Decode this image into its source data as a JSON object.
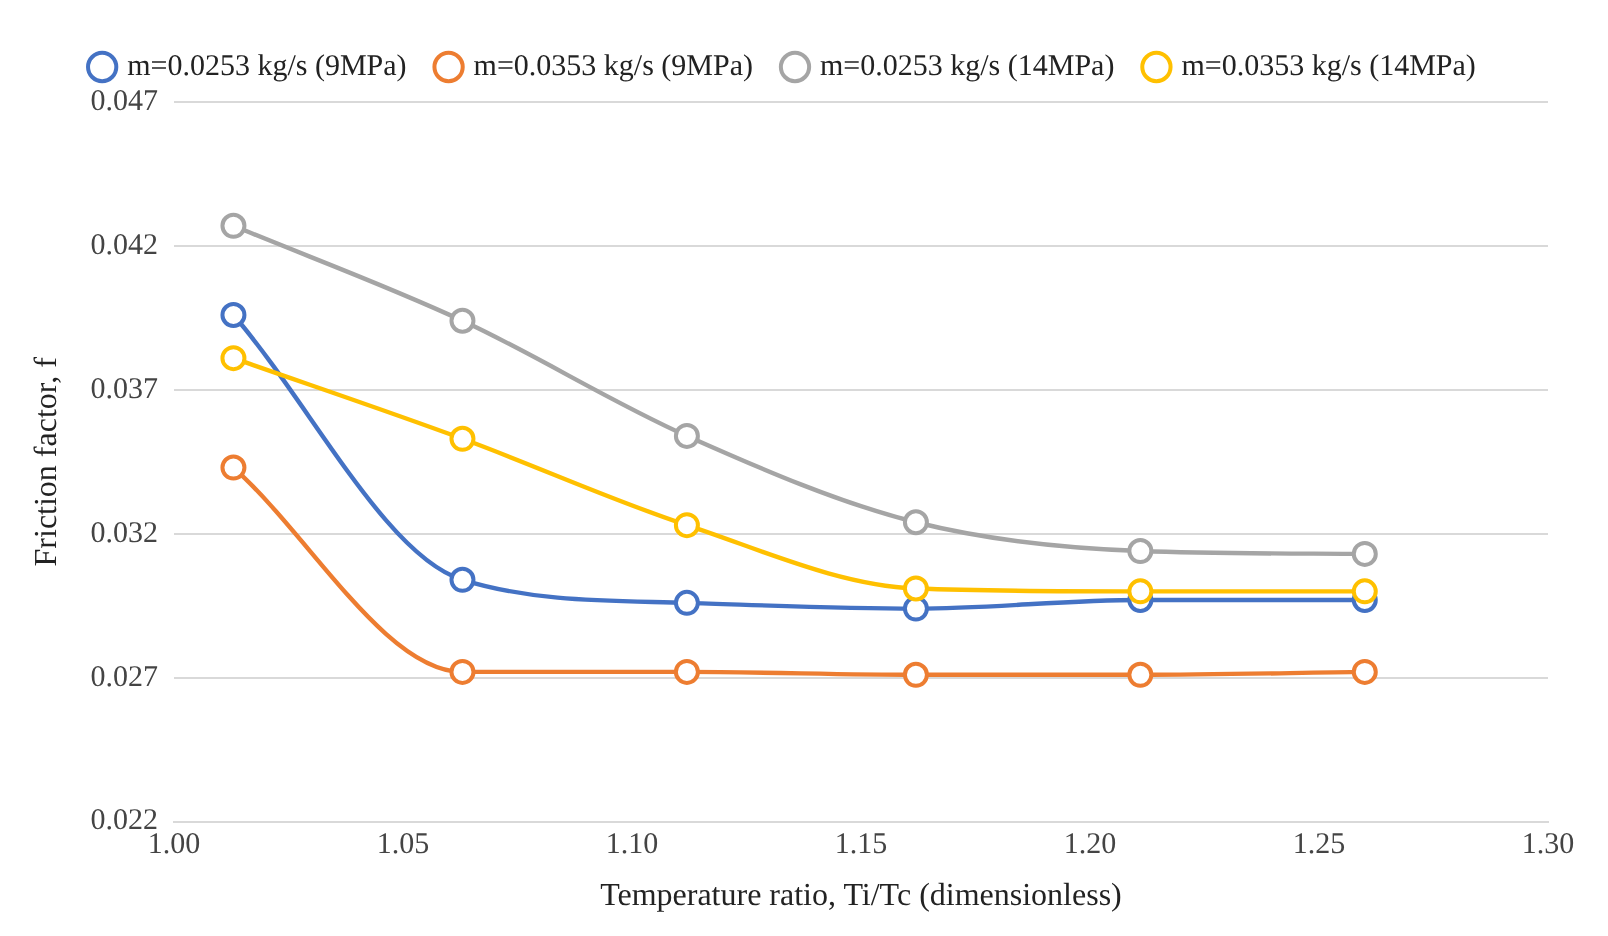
{
  "chart_data": {
    "type": "line",
    "xlabel": "Temperature ratio, Ti/Tc (dimensionless)",
    "ylabel": "Friction factor, f",
    "x": [
      1.013,
      1.063,
      1.112,
      1.162,
      1.211,
      1.26
    ],
    "series": [
      {
        "name": "m=0.0253 kg/s (9MPa)",
        "color": "#4472c4",
        "values": [
          0.0396,
          0.0304,
          0.0296,
          0.0294,
          0.0297,
          0.0297
        ]
      },
      {
        "name": "m=0.0353 kg/s (9MPa)",
        "color": "#ed7d31",
        "values": [
          0.0343,
          0.0272,
          0.0272,
          0.0271,
          0.0271,
          0.0272
        ]
      },
      {
        "name": "m=0.0253 kg/s (14MPa)",
        "color": "#a5a5a5",
        "values": [
          0.0427,
          0.0394,
          0.0354,
          0.0324,
          0.0314,
          0.0313
        ]
      },
      {
        "name": "m=0.0353 kg/s (14MPa)",
        "color": "#ffc000",
        "values": [
          0.0381,
          0.0353,
          0.0323,
          0.0301,
          0.03,
          0.03
        ]
      }
    ],
    "xlim": [
      1.0,
      1.3
    ],
    "xticks": [
      {
        "value": 1.0,
        "label": "1.00"
      },
      {
        "value": 1.05,
        "label": "1.05"
      },
      {
        "value": 1.1,
        "label": "1.10"
      },
      {
        "value": 1.15,
        "label": "1.15"
      },
      {
        "value": 1.2,
        "label": "1.20"
      },
      {
        "value": 1.25,
        "label": "1.25"
      },
      {
        "value": 1.3,
        "label": "1.30"
      }
    ],
    "ylim": [
      0.022,
      0.047
    ],
    "yticks": [
      0.022,
      0.027,
      0.032,
      0.037,
      0.042,
      0.047
    ],
    "grid": "y",
    "legend": "top",
    "marker": "circle",
    "line_style": "solid"
  }
}
